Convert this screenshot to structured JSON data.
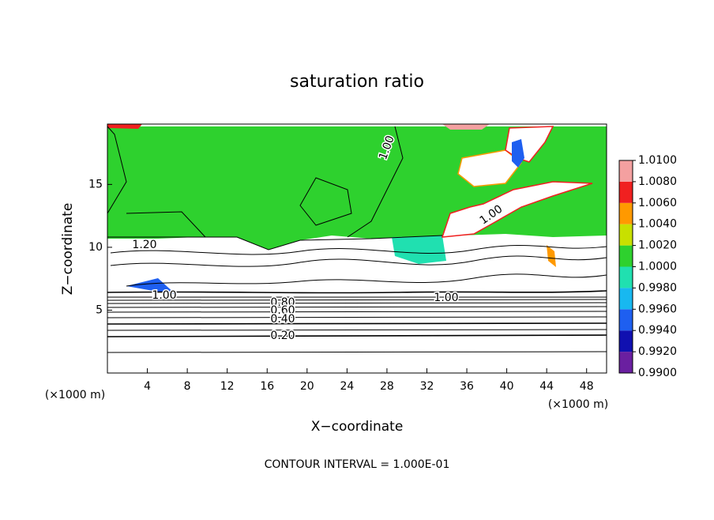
{
  "chart_data": {
    "type": "contour",
    "title": "saturation ratio",
    "x_label": "X−coordinate",
    "y_label": "Z−coordinate",
    "x_unit": "(×1000 m)",
    "footer": "CONTOUR INTERVAL = 1.000E-01",
    "xlim": [
      0,
      50
    ],
    "xticks": [
      4,
      8,
      12,
      16,
      20,
      24,
      28,
      32,
      36,
      40,
      44,
      48
    ],
    "ylim": [
      0,
      19.8
    ],
    "yticks": [
      5,
      10,
      15
    ],
    "contour_labels": [
      "1.00",
      "1.20",
      "1.00",
      "0.80",
      "0.60",
      "0.40",
      "0.20",
      "1.00",
      "1.00"
    ],
    "colorbar": {
      "ticks": [
        {
          "value": 0.99,
          "label": "0.9900"
        },
        {
          "value": 0.992,
          "label": "0.9920"
        },
        {
          "value": 0.994,
          "label": "0.9940"
        },
        {
          "value": 0.996,
          "label": "0.9960"
        },
        {
          "value": 0.998,
          "label": "0.9980"
        },
        {
          "value": 1.0,
          "label": "1.0000"
        },
        {
          "value": 1.002,
          "label": "1.0020"
        },
        {
          "value": 1.004,
          "label": "1.0040"
        },
        {
          "value": 1.006,
          "label": "1.0060"
        },
        {
          "value": 1.008,
          "label": "1.0080"
        },
        {
          "value": 1.01,
          "label": "1.0100"
        }
      ],
      "colors": [
        "#6a1fa0",
        "#1010b0",
        "#1e5ff0",
        "#18b8f0",
        "#20e0b0",
        "#2ed12e",
        "#c8e000",
        "#ff9900",
        "#f02020",
        "#f4a0a0"
      ]
    }
  }
}
